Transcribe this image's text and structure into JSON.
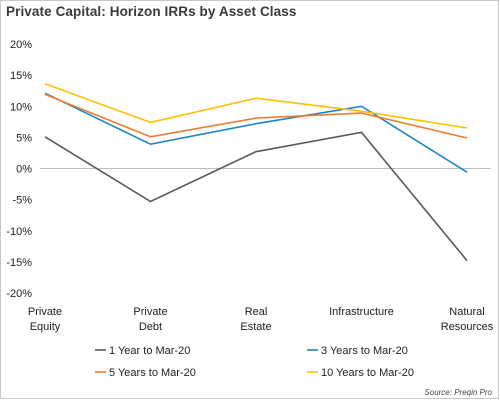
{
  "title": "Private Capital: Horizon IRRs by Asset Class",
  "source": "Source: Preqin Pro",
  "chart_data": {
    "type": "line",
    "categories": [
      [
        "Private",
        "Equity"
      ],
      [
        "Private",
        "Debt"
      ],
      [
        "Real",
        "Estate"
      ],
      [
        "Infrastructure"
      ],
      [
        "Natural",
        "Resources"
      ]
    ],
    "ylim": [
      -20,
      20
    ],
    "yticks": [
      20,
      15,
      10,
      5,
      0,
      -5,
      -10,
      -15,
      -20
    ],
    "ytick_labels": [
      "20%",
      "15%",
      "10%",
      "5%",
      "0%",
      "-5%",
      "-10%",
      "-15%",
      "-20%"
    ],
    "grid": false,
    "legend_position": "bottom",
    "series": [
      {
        "name": "1 Year to Mar-20",
        "color": "#595959",
        "values": [
          5.1,
          -5.3,
          2.7,
          5.8,
          -14.8
        ]
      },
      {
        "name": "3 Years to Mar-20",
        "color": "#1f86c4",
        "values": [
          12.1,
          3.9,
          7.2,
          10.0,
          -0.6
        ]
      },
      {
        "name": "5 Years to Mar-20",
        "color": "#ed7d31",
        "values": [
          11.9,
          5.1,
          8.1,
          8.9,
          4.9
        ]
      },
      {
        "name": "10 Years to Mar-20",
        "color": "#ffc000",
        "values": [
          13.6,
          7.4,
          11.3,
          9.2,
          6.5
        ]
      }
    ]
  }
}
